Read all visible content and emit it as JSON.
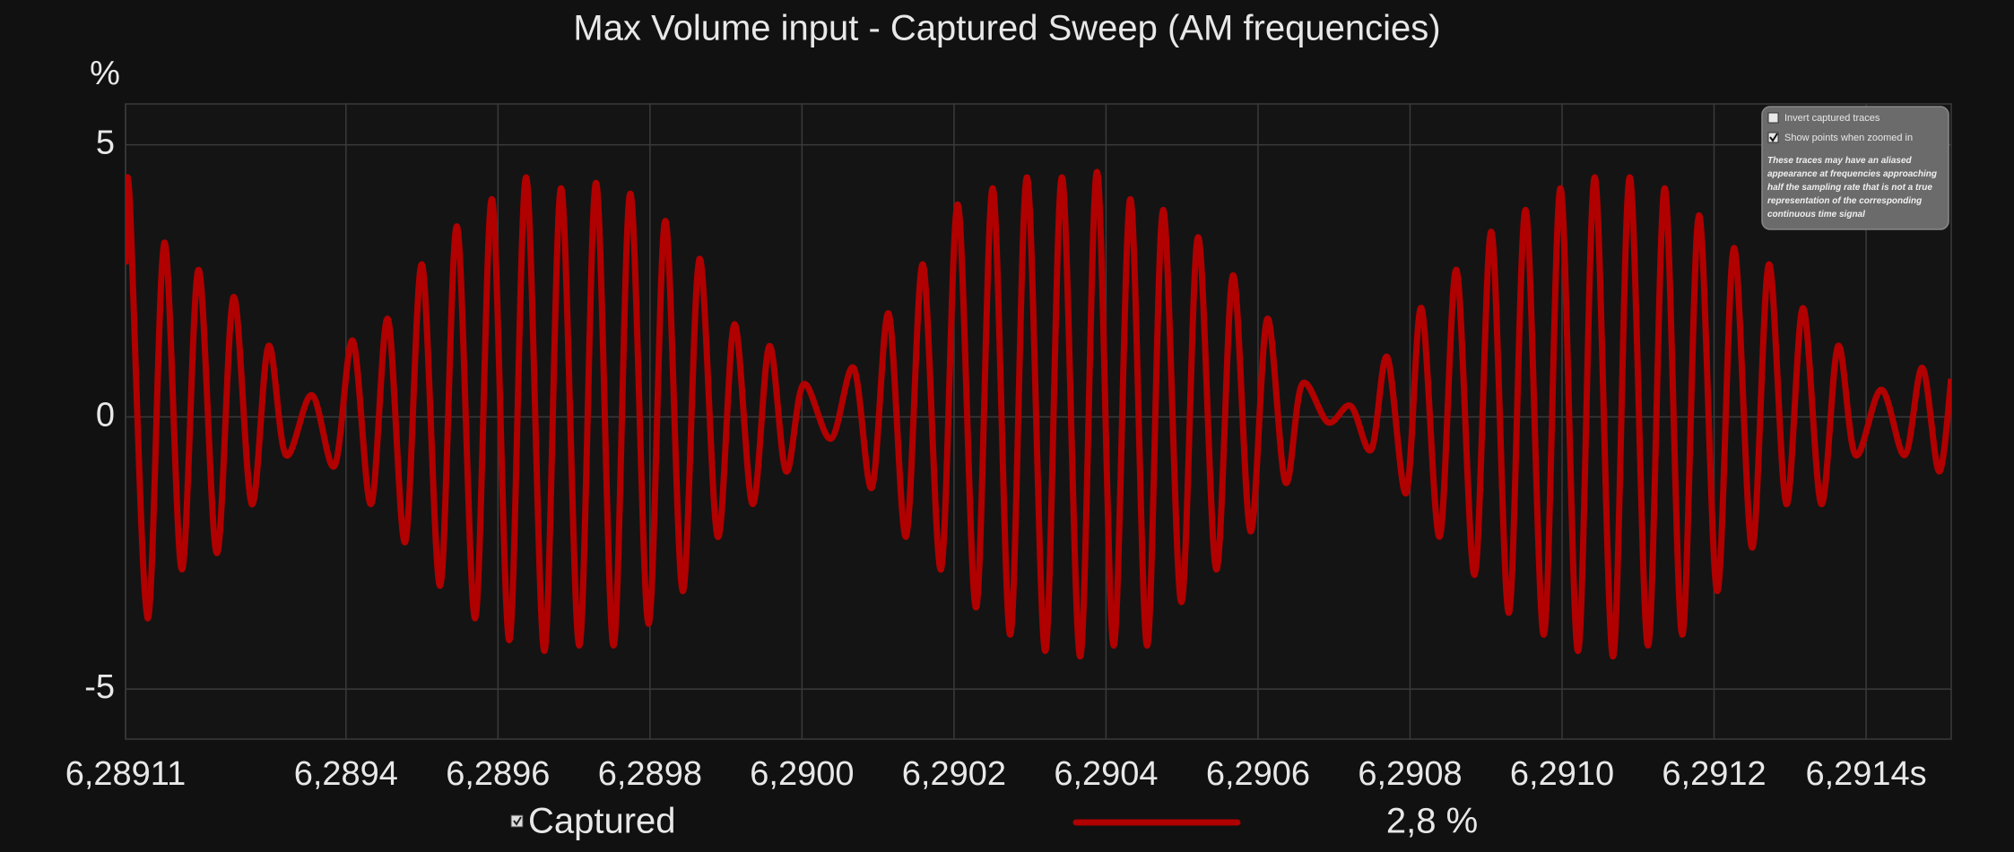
{
  "chart_data": {
    "type": "line",
    "title": "Max Volume input - Captured Sweep (AM frequencies)",
    "y_label": "%",
    "xlim": [
      6.28911,
      6.291512
    ],
    "ylim": [
      -5.92,
      5.75
    ],
    "xticks": [
      {
        "value": 6.28911,
        "label": "6,28911"
      },
      {
        "value": 6.2894,
        "label": "6,2894"
      },
      {
        "value": 6.2896,
        "label": "6,2896"
      },
      {
        "value": 6.2898,
        "label": "6,2898"
      },
      {
        "value": 6.29,
        "label": "6,2900"
      },
      {
        "value": 6.2902,
        "label": "6,2902"
      },
      {
        "value": 6.2904,
        "label": "6,2904"
      },
      {
        "value": 6.2906,
        "label": "6,2906"
      },
      {
        "value": 6.2908,
        "label": "6,2908"
      },
      {
        "value": 6.291,
        "label": "6,2910"
      },
      {
        "value": 6.2912,
        "label": "6,2912"
      },
      {
        "value": 6.2914,
        "label": "6,2914s"
      }
    ],
    "yticks": [
      5,
      0,
      -5
    ],
    "grid": true,
    "x": [
      6.28911,
      6.289115,
      6.289139,
      6.289161,
      6.289184,
      6.289206,
      6.28923,
      6.289252,
      6.289276,
      6.289298,
      6.289321,
      6.289355,
      6.289385,
      6.289409,
      6.289433,
      6.289455,
      6.289478,
      6.2895,
      6.289524,
      6.289546,
      6.28957,
      6.289592,
      6.289615,
      6.289637,
      6.289661,
      6.289683,
      6.289707,
      6.289729,
      6.289752,
      6.289774,
      6.289798,
      6.28982,
      6.289843,
      6.289865,
      6.289889,
      6.289911,
      6.289935,
      6.289957,
      6.289979,
      6.290002,
      6.290038,
      6.290068,
      6.290092,
      6.290114,
      6.290137,
      6.290159,
      6.290183,
      6.290205,
      6.290229,
      6.290251,
      6.290274,
      6.290296,
      6.29032,
      6.290342,
      6.290366,
      6.290388,
      6.29041,
      6.290432,
      6.290454,
      6.290475,
      6.290499,
      6.290521,
      6.290545,
      6.290567,
      6.29059,
      6.290612,
      6.290636,
      6.290658,
      6.290692,
      6.290722,
      6.290749,
      6.29077,
      6.290795,
      6.290815,
      6.290839,
      6.290861,
      6.290885,
      6.290907,
      6.29093,
      6.290952,
      6.290976,
      6.290998,
      6.291021,
      6.291043,
      6.291067,
      6.291089,
      6.291113,
      6.291135,
      6.291158,
      6.29118,
      6.291204,
      6.291226,
      6.29125,
      6.291272,
      6.291295,
      6.291317,
      6.291341,
      6.291363,
      6.291386,
      6.29142,
      6.291451,
      6.291474,
      6.291496,
      6.291512
    ],
    "series": [
      {
        "name": "Captured",
        "color": "#b00000",
        "values": [
          2.8,
          4.1,
          -3.7,
          3.2,
          -2.8,
          2.7,
          -2.5,
          2.2,
          -1.6,
          1.3,
          -0.7,
          0.4,
          -0.9,
          1.4,
          -1.6,
          1.8,
          -2.3,
          2.8,
          -3.1,
          3.5,
          -3.7,
          4.0,
          -4.1,
          4.4,
          -4.3,
          4.2,
          -4.2,
          4.3,
          -4.2,
          4.1,
          -3.8,
          3.6,
          -3.2,
          2.9,
          -2.2,
          1.7,
          -1.6,
          1.3,
          -1.0,
          0.6,
          -0.4,
          0.9,
          -1.3,
          1.9,
          -2.2,
          2.8,
          -2.8,
          3.9,
          -3.5,
          4.2,
          -4.0,
          4.4,
          -4.3,
          4.4,
          -4.4,
          4.5,
          -4.2,
          4.0,
          -4.2,
          3.8,
          -3.4,
          3.3,
          -2.8,
          2.6,
          -2.1,
          1.8,
          -1.2,
          0.6,
          -0.1,
          0.2,
          -0.6,
          1.1,
          -1.4,
          2.0,
          -2.2,
          2.7,
          -2.9,
          3.4,
          -3.6,
          3.8,
          -4.0,
          4.2,
          -4.3,
          4.4,
          -4.4,
          4.4,
          -4.2,
          4.2,
          -4.0,
          3.7,
          -3.2,
          3.1,
          -2.4,
          2.8,
          -1.6,
          2.0,
          -1.6,
          1.3,
          -0.7,
          0.5,
          -0.7,
          0.9,
          -1.0,
          0.7
        ],
        "reading": "2,8 %"
      }
    ],
    "options": {
      "invert_captured_traces": {
        "label": "Invert captured traces",
        "checked": false
      },
      "show_points_when_zoomed_in": {
        "label": "Show points when zoomed in",
        "checked": true
      },
      "note": "These traces may have an aliased appearance at frequencies approaching half the sampling rate that is not a true representation of the corresponding continuous time signal"
    }
  }
}
